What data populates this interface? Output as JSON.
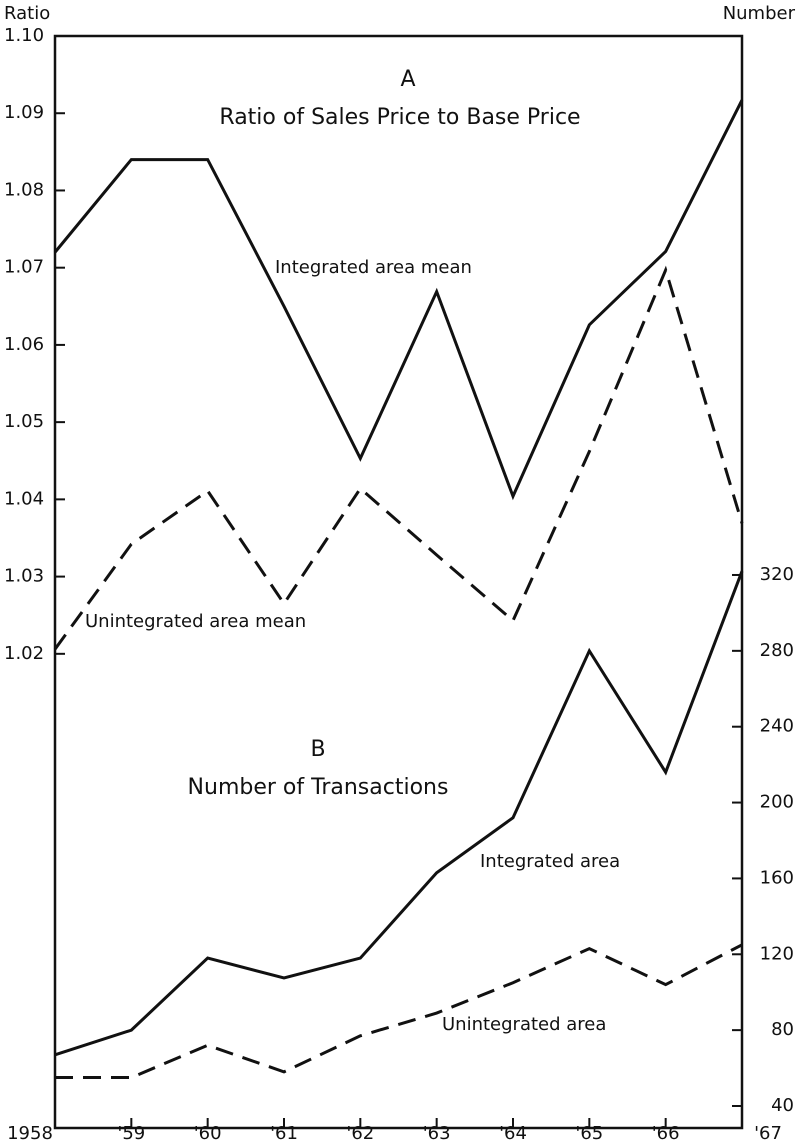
{
  "chart_data": {
    "type": "line",
    "panels": [
      {
        "letter": "A",
        "title": "Ratio of Sales Price to Base Price"
      },
      {
        "letter": "B",
        "title": "Number of Transactions"
      }
    ],
    "ylabel": "Ratio",
    "y2label": "Number",
    "categories": [
      "1958",
      "'59",
      "'60",
      "'61",
      "'62",
      "'63",
      "'64",
      "'65",
      "'66",
      "'67"
    ],
    "ylim": [
      0.9586,
      1.1
    ],
    "yticks": [
      1.02,
      1.03,
      1.04,
      1.05,
      1.06,
      1.07,
      1.08,
      1.09,
      {
        "value": 1.1,
        "label": "1.10"
      }
    ],
    "y2lim": [
      28.4,
      604.2
    ],
    "y2ticks": [
      40,
      80,
      120,
      160,
      200,
      240,
      280,
      320
    ],
    "series": [
      {
        "name": "Integrated area mean",
        "color": "#111111",
        "dash": false,
        "values": [
          1.072,
          1.084,
          1.084,
          1.065,
          1.0453,
          1.0669,
          1.0404,
          1.0626,
          1.0721,
          1.0917
        ]
      },
      {
        "name": "Unintegrated area mean",
        "color": "#111111",
        "dash": true,
        "values": [
          1.0206,
          1.0342,
          1.0411,
          1.0265,
          1.0414,
          1.0328,
          1.0243,
          1.0462,
          1.0697,
          1.0369
        ]
      },
      {
        "name": "Integrated area",
        "color": "#111111",
        "dash": false,
        "axis": "y2",
        "values": [
          67,
          80,
          118,
          107.5,
          118,
          163,
          192,
          280,
          216,
          322
        ]
      },
      {
        "name": "Unintegrated area",
        "color": "#111111",
        "dash": true,
        "axis": "y2",
        "values": [
          55,
          55,
          72,
          58,
          77,
          89,
          105,
          123,
          104,
          125
        ]
      }
    ]
  }
}
